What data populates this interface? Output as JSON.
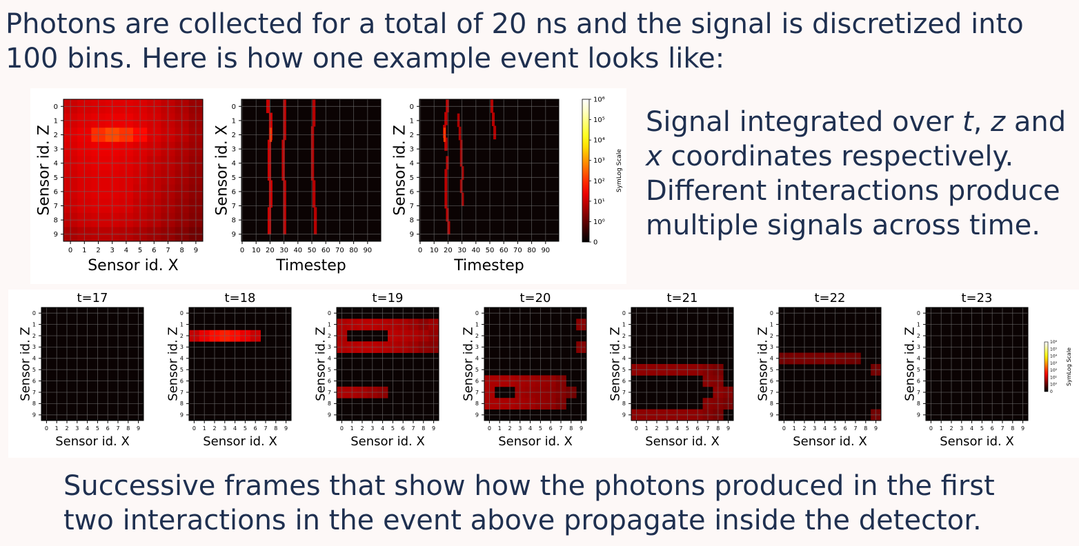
{
  "intro_text": "Photons are collected for a total of 20 ns and the signal is discretized into 100 bins. Here is how one example event looks like:",
  "side_text": {
    "line1_pre": "Signal integrated over ",
    "t": "t",
    "sep1": ", ",
    "z": "z",
    "line1_post": " and",
    "x": "x",
    "line2_post": " coordinates respectively.",
    "line3": "Different interactions produce",
    "line4": "multiple signals across time."
  },
  "bottom_text": "Successive frames that show how the photons produced in the first two interactions in the event above propagate inside the detector.",
  "colors": {
    "background": "#fdf8f7",
    "text": "#1f3050",
    "cmap": "hot"
  },
  "chart_data": [
    {
      "type": "heatmap",
      "xlabel": "Sensor id. X",
      "ylabel": "Sensor id. Z",
      "xticks": [
        "0",
        "1",
        "2",
        "3",
        "4",
        "5",
        "6",
        "7",
        "8",
        "9"
      ],
      "yticks": [
        "0",
        "1",
        "2",
        "3",
        "4",
        "5",
        "6",
        "7",
        "8",
        "9"
      ],
      "log_values": [
        [
          1.6,
          1.7,
          1.75,
          1.8,
          1.8,
          1.75,
          1.65,
          1.5,
          1.35,
          1.15
        ],
        [
          1.7,
          1.8,
          1.85,
          1.9,
          1.9,
          1.8,
          1.7,
          1.55,
          1.4,
          1.2
        ],
        [
          1.8,
          1.9,
          2.5,
          2.75,
          2.55,
          2.15,
          1.75,
          1.6,
          1.45,
          1.25
        ],
        [
          1.75,
          1.85,
          1.9,
          1.9,
          1.85,
          1.75,
          1.65,
          1.5,
          1.35,
          1.2
        ],
        [
          1.7,
          1.8,
          1.85,
          1.85,
          1.8,
          1.7,
          1.55,
          1.45,
          1.3,
          1.15
        ],
        [
          1.65,
          1.75,
          1.8,
          1.8,
          1.75,
          1.65,
          1.5,
          1.4,
          1.25,
          1.1
        ],
        [
          1.65,
          1.75,
          1.8,
          1.8,
          1.75,
          1.6,
          1.5,
          1.35,
          1.2,
          1.05
        ],
        [
          1.6,
          1.7,
          1.75,
          1.75,
          1.7,
          1.55,
          1.45,
          1.3,
          1.15,
          1.0
        ],
        [
          1.5,
          1.6,
          1.65,
          1.65,
          1.6,
          1.5,
          1.4,
          1.25,
          1.1,
          0.95
        ],
        [
          1.3,
          1.4,
          1.45,
          1.45,
          1.4,
          1.3,
          1.2,
          1.1,
          0.95,
          0.8
        ]
      ]
    },
    {
      "type": "heatmap",
      "xlabel": "Timestep",
      "ylabel": "Sensor id. X",
      "xticks": [
        "0",
        "10",
        "20",
        "30",
        "40",
        "50",
        "60",
        "70",
        "80",
        "90"
      ],
      "yticks": [
        "0",
        "1",
        "2",
        "3",
        "4",
        "5",
        "6",
        "7",
        "8",
        "9"
      ],
      "streaks": [
        {
          "row_range": [
            0,
            9.5
          ],
          "t": [
            19,
            21,
            21,
            20,
            20,
            20,
            21,
            21,
            20,
            20
          ],
          "width": 2.5,
          "log_value": 1.6,
          "hot": {
            "row": 2,
            "log_value": 2.6
          }
        },
        {
          "row_range": [
            0,
            9.5
          ],
          "t": [
            31,
            31,
            31,
            30,
            30,
            30,
            31,
            31,
            31,
            31
          ],
          "width": 2.2,
          "log_value": 1.5
        },
        {
          "row_range": [
            0,
            9.5
          ],
          "t": [
            52,
            52,
            51,
            51,
            51,
            51,
            52,
            52,
            53,
            53
          ],
          "width": 2.2,
          "log_value": 1.4
        }
      ]
    },
    {
      "type": "heatmap",
      "xlabel": "Timestep",
      "ylabel": "Sensor id. Z",
      "xticks": [
        "0",
        "10",
        "20",
        "30",
        "40",
        "50",
        "60",
        "70",
        "80",
        "90"
      ],
      "yticks": [
        "0",
        "1",
        "2",
        "3",
        "4",
        "5",
        "6",
        "7",
        "8",
        "9"
      ],
      "streaks": [
        {
          "row_range": [
            0,
            3.6
          ],
          "t": [
            20,
            19,
            18,
            19
          ],
          "width": 2.2,
          "log_value": 1.5,
          "hot": {
            "row": 2,
            "log_value": 2.6
          }
        },
        {
          "row_range": [
            4,
            9.5
          ],
          "t": [
            20,
            19,
            19,
            19,
            20,
            21
          ],
          "width": 2.0,
          "log_value": 1.45
        },
        {
          "row_range": [
            1,
            7.5
          ],
          "t": [
            28,
            29,
            30,
            30,
            31,
            30,
            31
          ],
          "width": 1.8,
          "log_value": 1.3
        },
        {
          "row_range": [
            0,
            2.8
          ],
          "t": [
            52,
            53,
            54
          ],
          "width": 2.0,
          "log_value": 1.4
        }
      ]
    },
    {
      "type": "colorbar",
      "label": "SymLog Scale",
      "tick_labels": [
        "0",
        "10⁰",
        "10¹",
        "10²",
        "10³",
        "10⁴",
        "10⁵",
        "10⁶"
      ]
    },
    {
      "type": "heatmap_frames",
      "xlabel": "Sensor id. X",
      "ylabel": "Sensor id. Z",
      "xticks": [
        "0",
        "1",
        "2",
        "3",
        "4",
        "5",
        "6",
        "7",
        "8",
        "9"
      ],
      "yticks": [
        "0",
        "1",
        "2",
        "3",
        "4",
        "5",
        "6",
        "7",
        "8",
        "9"
      ],
      "colorbar_label": "SymLog Scale",
      "frames": [
        {
          "title": "t=17",
          "cells": []
        },
        {
          "title": "t=18",
          "cells": [
            [
              2,
              0,
              1.55
            ],
            [
              2,
              1,
              1.9
            ],
            [
              2,
              2,
              2.2
            ],
            [
              2,
              3,
              2.35
            ],
            [
              2,
              4,
              2.2
            ],
            [
              2,
              5,
              1.9
            ],
            [
              2,
              6,
              1.6
            ]
          ]
        },
        {
          "title": "t=19",
          "cells": [
            [
              1,
              0,
              1.35
            ],
            [
              1,
              1,
              1.4
            ],
            [
              1,
              2,
              1.45
            ],
            [
              1,
              3,
              1.45
            ],
            [
              1,
              4,
              1.4
            ],
            [
              1,
              5,
              1.35
            ],
            [
              1,
              6,
              1.3
            ],
            [
              1,
              7,
              1.2
            ],
            [
              1,
              8,
              1.05
            ],
            [
              1,
              9,
              0.0
            ],
            [
              1,
              9,
              1.2
            ],
            [
              2,
              0,
              1.3
            ],
            [
              2,
              5,
              1.45
            ],
            [
              2,
              6,
              1.4
            ],
            [
              2,
              7,
              1.35
            ],
            [
              2,
              8,
              1.25
            ],
            [
              2,
              9,
              1.1
            ],
            [
              3,
              0,
              1.35
            ],
            [
              3,
              1,
              1.4
            ],
            [
              3,
              2,
              1.45
            ],
            [
              3,
              3,
              1.45
            ],
            [
              3,
              4,
              1.4
            ],
            [
              3,
              5,
              1.35
            ],
            [
              3,
              6,
              1.3
            ],
            [
              3,
              7,
              1.2
            ],
            [
              3,
              8,
              1.05
            ],
            [
              3,
              9,
              1.0
            ],
            [
              7,
              0,
              1.3
            ],
            [
              7,
              1,
              1.3
            ],
            [
              7,
              2,
              1.25
            ],
            [
              7,
              3,
              1.15
            ],
            [
              7,
              4,
              1.05
            ]
          ]
        },
        {
          "title": "t=20",
          "cells": [
            [
              6,
              0,
              1.3
            ],
            [
              6,
              1,
              1.3
            ],
            [
              6,
              2,
              1.3
            ],
            [
              6,
              3,
              1.25
            ],
            [
              6,
              4,
              1.2
            ],
            [
              6,
              5,
              1.15
            ],
            [
              6,
              6,
              1.1
            ],
            [
              6,
              7,
              0.95
            ],
            [
              7,
              0,
              1.3
            ],
            [
              7,
              3,
              1.2
            ],
            [
              7,
              4,
              1.15
            ],
            [
              7,
              5,
              1.1
            ],
            [
              7,
              6,
              1.05
            ],
            [
              7,
              7,
              0.95
            ],
            [
              7,
              8,
              0.8
            ],
            [
              8,
              0,
              1.3
            ],
            [
              8,
              1,
              1.3
            ],
            [
              8,
              2,
              1.3
            ],
            [
              8,
              3,
              1.25
            ],
            [
              8,
              4,
              1.2
            ],
            [
              8,
              5,
              1.1
            ],
            [
              8,
              6,
              1.05
            ],
            [
              8,
              7,
              0.9
            ],
            [
              1,
              9,
              1.0
            ],
            [
              3,
              9,
              0.95
            ]
          ]
        },
        {
          "title": "t=21",
          "cells": [
            [
              5,
              0,
              1.05
            ],
            [
              5,
              1,
              1.05
            ],
            [
              5,
              2,
              1.05
            ],
            [
              5,
              3,
              1.05
            ],
            [
              5,
              4,
              1.05
            ],
            [
              5,
              5,
              1.05
            ],
            [
              5,
              6,
              1.05
            ],
            [
              5,
              7,
              0.95
            ],
            [
              5,
              8,
              0.85
            ],
            [
              6,
              7,
              1.0
            ],
            [
              6,
              8,
              0.95
            ],
            [
              7,
              8,
              1.05
            ],
            [
              7,
              9,
              0.95
            ],
            [
              8,
              7,
              1.0
            ],
            [
              8,
              8,
              0.95
            ],
            [
              8,
              9,
              0.85
            ],
            [
              9,
              0,
              1.05
            ],
            [
              9,
              1,
              1.05
            ],
            [
              9,
              2,
              1.05
            ],
            [
              9,
              3,
              1.05
            ],
            [
              9,
              4,
              1.05
            ],
            [
              9,
              5,
              1.05
            ],
            [
              9,
              6,
              1.05
            ],
            [
              9,
              7,
              0.95
            ],
            [
              9,
              8,
              0.85
            ]
          ]
        },
        {
          "title": "t=22",
          "cells": [
            [
              4,
              0,
              0.8
            ],
            [
              4,
              1,
              0.85
            ],
            [
              4,
              2,
              0.85
            ],
            [
              4,
              3,
              0.85
            ],
            [
              4,
              4,
              0.85
            ],
            [
              4,
              5,
              0.85
            ],
            [
              4,
              6,
              0.8
            ],
            [
              4,
              7,
              0.75
            ],
            [
              5,
              9,
              0.8
            ],
            [
              9,
              9,
              0.8
            ]
          ]
        },
        {
          "title": "t=23",
          "cells": []
        }
      ]
    }
  ]
}
